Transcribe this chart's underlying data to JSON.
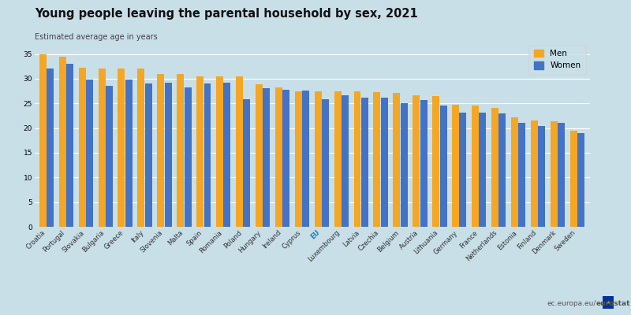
{
  "title": "Young people leaving the parental household by sex, 2021",
  "subtitle": "Estimated average age in years",
  "categories": [
    "Croatia",
    "Portugal",
    "Slovakia",
    "Bulgaria",
    "Greece",
    "Italy",
    "Slovenia",
    "Malta",
    "Spain",
    "Romania",
    "Poland",
    "Hungary",
    "Ireland",
    "Cyprus",
    "EU",
    "Luxembourg",
    "Latvia",
    "Czechia",
    "Belgium",
    "Austria",
    "Lithuania",
    "Germany",
    "France",
    "Netherlands",
    "Estonia",
    "Finland",
    "Denmark",
    "Sweden"
  ],
  "men": [
    34.9,
    34.5,
    32.2,
    32.1,
    32.0,
    32.0,
    31.0,
    31.0,
    30.5,
    30.5,
    30.5,
    28.8,
    28.2,
    27.5,
    27.5,
    27.5,
    27.5,
    27.2,
    27.1,
    26.7,
    26.5,
    24.7,
    24.6,
    24.1,
    22.2,
    21.5,
    21.3,
    19.4
  ],
  "women": [
    32.0,
    33.0,
    29.8,
    28.5,
    29.8,
    29.0,
    29.2,
    28.3,
    29.0,
    29.2,
    25.8,
    28.0,
    27.7,
    27.6,
    25.8,
    26.7,
    26.2,
    26.2,
    25.1,
    25.7,
    24.5,
    23.1,
    23.1,
    22.9,
    21.1,
    20.4,
    21.1,
    19.0
  ],
  "men_color": "#F5A623",
  "women_color": "#4472C4",
  "eu_label_color": "#1F7BC0",
  "background_color": "#C8DFE8",
  "ylim": [
    0,
    37
  ],
  "yticks": [
    0,
    5,
    10,
    15,
    20,
    25,
    30,
    35
  ],
  "watermark_regular": "ec.europa.eu/",
  "watermark_bold": "eurostat",
  "legend_men": "Men",
  "legend_women": "Women",
  "title_fontsize": 10.5,
  "subtitle_fontsize": 7.0
}
